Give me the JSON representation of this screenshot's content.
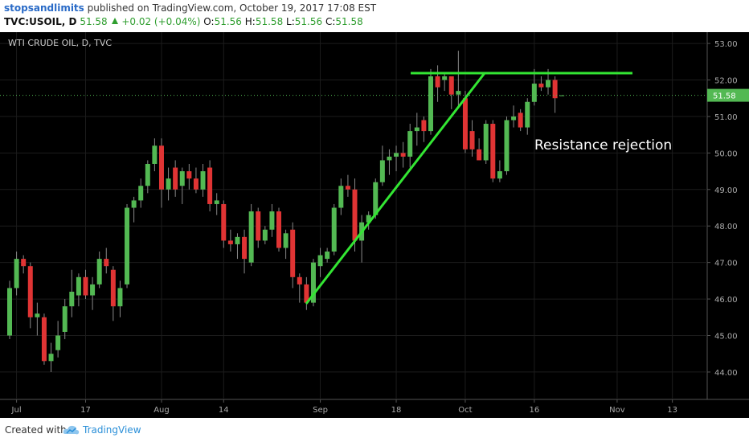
{
  "header": {
    "author": "stopsandlimits",
    "published": "published on TradingView.com, October 19, 2017 17:08 EST",
    "symbol": "TVC:USOIL, D",
    "price": "51.58",
    "change": "+0.02 (+0.04%)",
    "quote": [
      {
        "label": "O:",
        "value": "51.56"
      },
      {
        "label": "H:",
        "value": "51.58"
      },
      {
        "label": "L:",
        "value": "51.56"
      },
      {
        "label": "C:",
        "value": "51.58"
      }
    ]
  },
  "chart_data": {
    "type": "candlestick",
    "title": "WTI CRUDE OIL, D, TVC",
    "annotation": "Resistance rejection",
    "up_color": "#53b953",
    "down_color": "#e03434",
    "last_price": 51.58,
    "grid": true,
    "x": [
      "2017-06-30",
      "2017-07-03",
      "2017-07-04",
      "2017-07-05",
      "2017-07-06",
      "2017-07-07",
      "2017-07-10",
      "2017-07-11",
      "2017-07-12",
      "2017-07-13",
      "2017-07-14",
      "2017-07-17",
      "2017-07-18",
      "2017-07-19",
      "2017-07-20",
      "2017-07-21",
      "2017-07-24",
      "2017-07-25",
      "2017-07-26",
      "2017-07-27",
      "2017-07-28",
      "2017-07-31",
      "2017-08-01",
      "2017-08-02",
      "2017-08-03",
      "2017-08-04",
      "2017-08-07",
      "2017-08-08",
      "2017-08-09",
      "2017-08-10",
      "2017-08-11",
      "2017-08-14",
      "2017-08-15",
      "2017-08-16",
      "2017-08-17",
      "2017-08-18",
      "2017-08-21",
      "2017-08-22",
      "2017-08-23",
      "2017-08-24",
      "2017-08-25",
      "2017-08-28",
      "2017-08-29",
      "2017-08-30",
      "2017-08-31",
      "2017-09-01",
      "2017-09-04",
      "2017-09-05",
      "2017-09-06",
      "2017-09-07",
      "2017-09-08",
      "2017-09-11",
      "2017-09-12",
      "2017-09-13",
      "2017-09-14",
      "2017-09-15",
      "2017-09-18",
      "2017-09-19",
      "2017-09-20",
      "2017-09-21",
      "2017-09-22",
      "2017-09-25",
      "2017-09-26",
      "2017-09-27",
      "2017-09-28",
      "2017-09-29",
      "2017-10-02",
      "2017-10-03",
      "2017-10-04",
      "2017-10-05",
      "2017-10-06",
      "2017-10-09",
      "2017-10-10",
      "2017-10-11",
      "2017-10-12",
      "2017-10-13",
      "2017-10-16",
      "2017-10-17",
      "2017-10-18",
      "2017-10-19",
      "2017-10-20"
    ],
    "open": [
      45.0,
      46.3,
      47.1,
      46.9,
      45.5,
      45.5,
      44.3,
      44.6,
      45.1,
      45.8,
      46.1,
      46.6,
      46.1,
      46.4,
      47.1,
      46.8,
      45.8,
      46.4,
      48.5,
      48.7,
      49.1,
      49.7,
      50.2,
      49.0,
      49.6,
      49.1,
      49.5,
      49.3,
      49.0,
      49.6,
      48.6,
      48.6,
      47.6,
      47.5,
      47.7,
      47.0,
      48.4,
      47.6,
      47.9,
      48.4,
      47.4,
      47.9,
      46.6,
      46.4,
      45.9,
      46.9,
      47.1,
      47.3,
      48.5,
      49.1,
      49.0,
      47.6,
      48.1,
      48.3,
      49.2,
      49.8,
      49.9,
      50.0,
      49.9,
      50.6,
      50.9,
      50.6,
      52.1,
      52.0,
      52.1,
      51.6,
      51.5,
      50.6,
      50.1,
      49.8,
      50.8,
      49.3,
      49.5,
      50.9,
      51.1,
      50.7,
      51.4,
      51.9,
      51.8,
      52.0,
      51.56
    ],
    "high": [
      46.5,
      47.3,
      47.2,
      47.0,
      45.9,
      45.6,
      44.8,
      45.4,
      46.0,
      46.8,
      46.7,
      46.8,
      46.6,
      47.3,
      47.4,
      46.9,
      46.5,
      48.6,
      48.8,
      49.3,
      49.8,
      50.4,
      50.4,
      49.6,
      49.8,
      49.6,
      49.7,
      49.6,
      49.7,
      49.8,
      48.9,
      48.7,
      47.9,
      47.8,
      47.9,
      48.6,
      48.5,
      48.0,
      48.6,
      48.5,
      47.9,
      48.1,
      46.7,
      46.6,
      47.1,
      47.4,
      47.4,
      48.6,
      49.3,
      49.4,
      49.3,
      48.3,
      48.4,
      49.3,
      50.2,
      50.1,
      50.2,
      50.3,
      50.8,
      51.1,
      51.0,
      52.3,
      52.4,
      52.2,
      52.1,
      52.8,
      51.7,
      50.9,
      50.4,
      50.9,
      50.9,
      49.8,
      51.0,
      51.3,
      51.2,
      51.5,
      52.3,
      52.1,
      52.3,
      52.1,
      51.58
    ],
    "low": [
      44.9,
      46.1,
      46.7,
      45.2,
      45.0,
      44.2,
      44.0,
      44.4,
      44.9,
      45.5,
      45.8,
      46.0,
      45.7,
      46.3,
      46.7,
      45.4,
      45.5,
      46.3,
      48.1,
      48.5,
      48.9,
      49.5,
      48.5,
      48.7,
      48.8,
      48.6,
      49.0,
      48.9,
      48.8,
      48.4,
      48.3,
      47.4,
      47.3,
      47.1,
      46.7,
      46.9,
      47.4,
      47.5,
      47.7,
      47.3,
      47.1,
      46.3,
      45.9,
      45.7,
      45.8,
      46.6,
      47.0,
      47.2,
      48.3,
      48.8,
      47.3,
      47.0,
      47.9,
      48.2,
      49.1,
      49.4,
      49.5,
      49.6,
      49.6,
      50.2,
      50.3,
      50.5,
      51.4,
      51.7,
      51.2,
      51.3,
      50.0,
      49.9,
      49.8,
      49.7,
      49.2,
      49.2,
      49.4,
      50.7,
      50.6,
      50.5,
      51.3,
      51.7,
      51.6,
      51.1,
      51.56
    ],
    "close": [
      46.3,
      47.1,
      46.9,
      45.5,
      45.6,
      44.3,
      44.5,
      45.0,
      45.8,
      46.2,
      46.6,
      46.1,
      46.4,
      47.1,
      46.9,
      45.8,
      46.3,
      48.5,
      48.7,
      49.1,
      49.7,
      50.2,
      49.0,
      49.3,
      49.0,
      49.5,
      49.3,
      49.0,
      49.5,
      48.6,
      48.7,
      47.6,
      47.5,
      47.7,
      47.1,
      48.4,
      47.6,
      47.9,
      48.4,
      47.4,
      47.8,
      46.6,
      46.4,
      45.9,
      47.0,
      47.2,
      47.3,
      48.5,
      49.1,
      49.0,
      47.6,
      48.1,
      48.3,
      49.2,
      49.8,
      49.9,
      50.0,
      49.9,
      50.6,
      50.7,
      50.6,
      52.1,
      51.8,
      52.1,
      51.6,
      51.7,
      50.1,
      50.1,
      49.8,
      50.8,
      49.3,
      49.5,
      50.9,
      51.0,
      50.7,
      51.4,
      51.9,
      51.8,
      52.0,
      51.5,
      51.58
    ],
    "ylim": [
      43.25,
      53.31
    ],
    "yticks": [
      {
        "value": 44,
        "label": "44.00"
      },
      {
        "value": 45,
        "label": "45.00"
      },
      {
        "value": 46,
        "label": "46.00"
      },
      {
        "value": 47,
        "label": "47.00"
      },
      {
        "value": 48,
        "label": "48.00"
      },
      {
        "value": 49,
        "label": "49.00"
      },
      {
        "value": 50,
        "label": "50.00"
      },
      {
        "value": 51,
        "label": "51.00"
      },
      {
        "value": 52,
        "label": "52.00"
      },
      {
        "value": 53,
        "label": "53.00"
      }
    ],
    "xticks": [
      {
        "value": "2017-07-03",
        "label": "Jul"
      },
      {
        "value": "2017-07-17",
        "label": "17"
      },
      {
        "value": "2017-08-01",
        "label": "Aug"
      },
      {
        "value": "2017-08-14",
        "label": "14"
      },
      {
        "value": "2017-09-01",
        "label": "Sep"
      },
      {
        "value": "2017-09-18",
        "label": "18"
      },
      {
        "value": "2017-10-02",
        "label": "Oct"
      },
      {
        "value": "2017-10-16",
        "label": "16"
      },
      {
        "value": "2017-11-01",
        "label": "Nov"
      },
      {
        "value": "2017-11-13",
        "label": "13"
      }
    ]
  },
  "footer": {
    "created": "Created with",
    "brand": "TradingView"
  }
}
